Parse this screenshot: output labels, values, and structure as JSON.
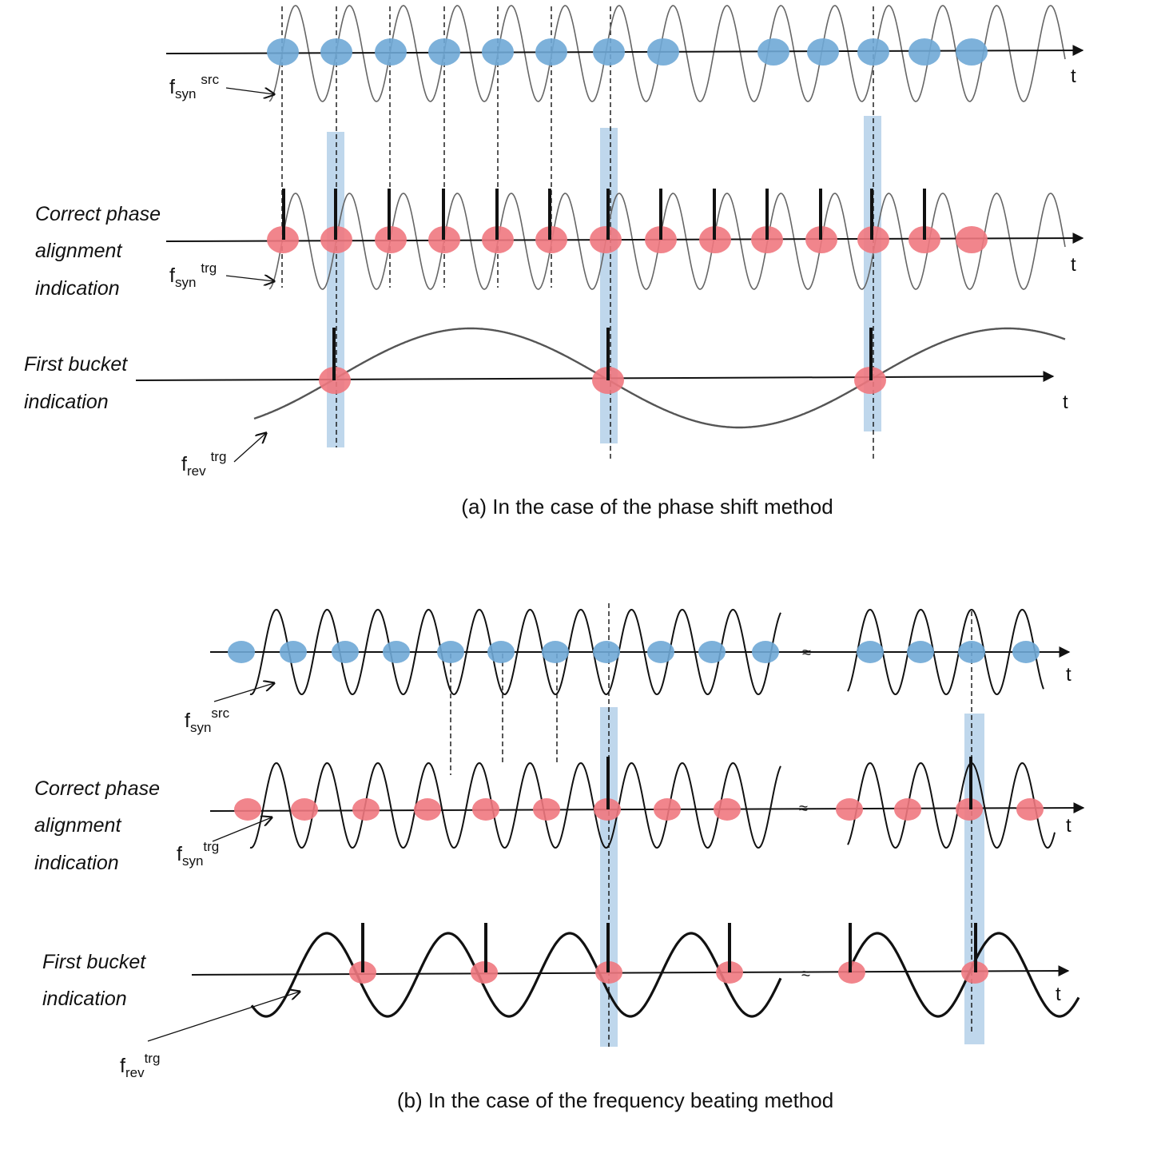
{
  "colors": {
    "source_bunch": "#6fa8d6",
    "target_bucket": "#f07880",
    "highlight_band": "#a9c9e6",
    "line": "#111111"
  },
  "panel_a": {
    "caption": "(a) In the case of the phase shift method",
    "axis_label": "t",
    "labels": {
      "correct_line1": "Correct phase",
      "correct_line2": "alignment",
      "correct_line3": "indication",
      "first_line1": "First bucket",
      "first_line2": "indication"
    },
    "symbols": {
      "fsyn_src": {
        "base": "f",
        "sub": "syn",
        "sup": "src"
      },
      "fsyn_trg": {
        "base": "f",
        "sub": "syn",
        "sup": "trg"
      },
      "frev_trg": {
        "base": "f",
        "sub": "rev",
        "sup": "trg"
      }
    }
  },
  "panel_b": {
    "caption": "(b) In the case of the frequency beating method",
    "axis_label": "t",
    "break_mark": "≈",
    "labels": {
      "correct_line1": "Correct phase",
      "correct_line2": "alignment",
      "correct_line3": "indication",
      "first_line1": "First bucket",
      "first_line2": "indication"
    },
    "symbols": {
      "fsyn_src": {
        "base": "f",
        "sub": "syn",
        "sup": "src"
      },
      "fsyn_trg": {
        "base": "f",
        "sub": "syn",
        "sup": "trg"
      },
      "frev_trg": {
        "base": "f",
        "sub": "rev",
        "sup": "trg"
      }
    }
  }
}
